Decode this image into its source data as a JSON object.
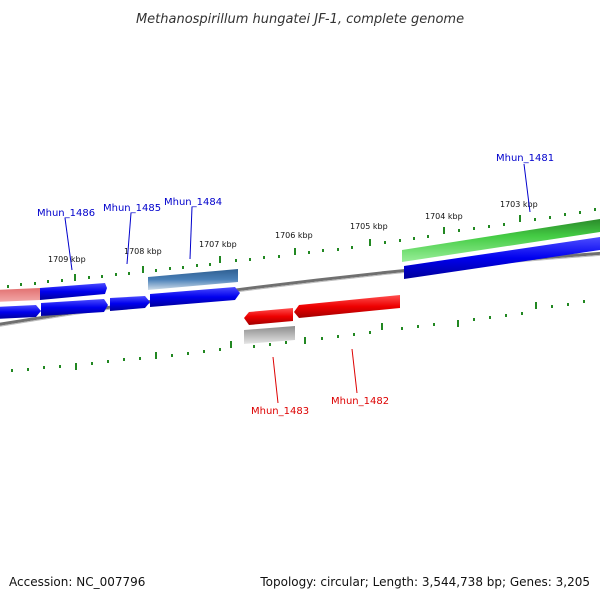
{
  "title": "Methanospirillum hungatei JF-1, complete genome",
  "footer": {
    "accession": "Accession: NC_007796",
    "info": "Topology: circular; Length: 3,544,738 bp; Genes: 3,205"
  },
  "tick_labels": [
    "1709 kbp",
    "1708 kbp",
    "1707 kbp",
    "1706 kbp",
    "1705 kbp",
    "1704 kbp",
    "1703 kbp"
  ],
  "gene_labels": {
    "mhun_1486": "Mhun_1486",
    "mhun_1485": "Mhun_1485",
    "mhun_1484": "Mhun_1484",
    "mhun_1481": "Mhun_1481",
    "mhun_1483": "Mhun_1483",
    "mhun_1482": "Mhun_1482"
  },
  "colors": {
    "forward_cds": "#0000ee",
    "reverse_cds": "#ee0000",
    "label_forward": "#0000cc",
    "label_reverse": "#dd0000",
    "rna_gene": "#33bb33",
    "pseudo_forward": "#3a70a8",
    "pseudo_reverse": "#aaaaaa",
    "faded_gene": "#e88a8a",
    "backbone": "#7a7a7a",
    "ticks": "#228822"
  }
}
